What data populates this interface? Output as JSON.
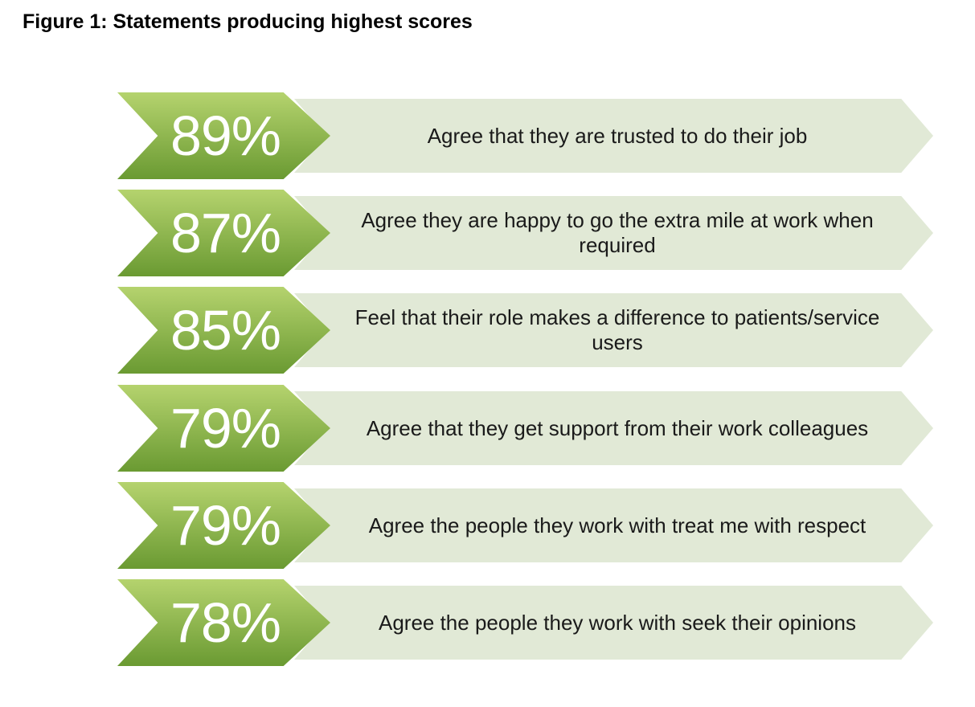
{
  "figure": {
    "title": "Figure 1: Statements producing highest scores"
  },
  "colors": {
    "chevron_light": "#b5d36e",
    "chevron_dark": "#6a9a32",
    "statement_fill": "#e1e9d6"
  },
  "statements": [
    {
      "percent": "89%",
      "text": "Agree that they are trusted to do their job"
    },
    {
      "percent": "87%",
      "text": "Agree they are happy to go the extra mile at work when required"
    },
    {
      "percent": "85%",
      "text": "Feel that their role makes a difference to patients/service users"
    },
    {
      "percent": "79%",
      "text": "Agree that they get support from their work colleagues"
    },
    {
      "percent": "79%",
      "text": "Agree the people they work with treat me with respect"
    },
    {
      "percent": "78%",
      "text": "Agree the people they work with seek their opinions"
    }
  ]
}
